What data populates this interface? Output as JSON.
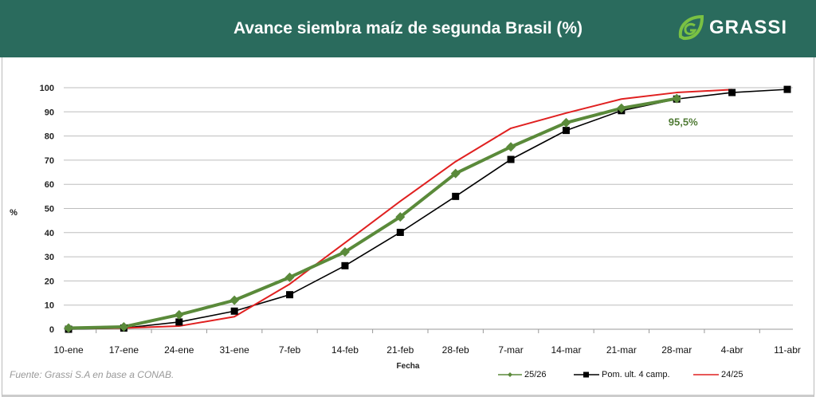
{
  "header": {
    "title": "Avance siembra maíz de segunda Brasil (%)",
    "logo_text": "GRASSI"
  },
  "source": "Fuente: Grassi S.A en base a CONAB.",
  "chart_data": {
    "type": "line",
    "title": "Avance siembra maíz de segunda Brasil (%)",
    "xlabel": "Fecha",
    "ylabel": "%",
    "ylim": [
      0,
      100
    ],
    "yticks": [
      0,
      10,
      20,
      30,
      40,
      50,
      60,
      70,
      80,
      90,
      100
    ],
    "grid": true,
    "categories": [
      "10-ene",
      "17-ene",
      "24-ene",
      "31-ene",
      "7-feb",
      "14-feb",
      "21-feb",
      "28-feb",
      "7-mar",
      "14-mar",
      "21-mar",
      "28-mar",
      "4-abr",
      "11-abr"
    ],
    "series": [
      {
        "name": "25/26",
        "color": "#5a8a3a",
        "marker": "diamond",
        "values": [
          0.5,
          1,
          6,
          12,
          21.5,
          32,
          46.5,
          64.5,
          75.5,
          85.5,
          91.5,
          95.5,
          null,
          null
        ]
      },
      {
        "name": "Pom. ult. 4 camp.",
        "color": "#000000",
        "marker": "square",
        "values": [
          0,
          0.5,
          3,
          7.5,
          14.3,
          26.3,
          40.1,
          55,
          70.3,
          82.3,
          90.5,
          95.3,
          98,
          99.3
        ]
      },
      {
        "name": "24/25",
        "color": "#e02020",
        "marker": "none",
        "values": [
          0.3,
          0.5,
          1.3,
          5.2,
          18.7,
          35.8,
          53,
          69.4,
          83.2,
          89.5,
          95.3,
          98,
          99.2,
          null
        ]
      }
    ],
    "annotations": [
      {
        "text": "95,5%",
        "category": "28-mar",
        "series": "25/26"
      }
    ],
    "legend_position": "bottom-right"
  }
}
